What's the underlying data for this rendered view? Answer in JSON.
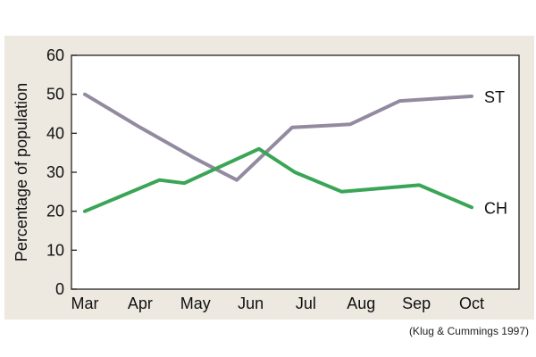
{
  "chart_data": {
    "type": "line",
    "title": "",
    "xlabel": "",
    "ylabel": "Percentage of population",
    "categories": [
      "Mar",
      "Apr",
      "May",
      "Jun",
      "Jul",
      "Aug",
      "Sep",
      "Oct"
    ],
    "ylim": [
      0,
      60
    ],
    "yticks": [
      0,
      10,
      20,
      30,
      40,
      50,
      60
    ],
    "grid": false,
    "legend": "inline-right",
    "series": [
      {
        "name": "ST",
        "color": "#938aa0",
        "points": [
          {
            "x": 0,
            "y": 50
          },
          {
            "x": 1,
            "y": 41.5
          },
          {
            "x": 2,
            "y": 33.5
          },
          {
            "x": 2.75,
            "y": 28
          },
          {
            "x": 3.75,
            "y": 41.5
          },
          {
            "x": 4.8,
            "y": 42.3
          },
          {
            "x": 5.7,
            "y": 48.3
          },
          {
            "x": 7,
            "y": 49.5
          }
        ]
      },
      {
        "name": "CH",
        "color": "#3aa556",
        "points": [
          {
            "x": 0,
            "y": 20
          },
          {
            "x": 1.35,
            "y": 28
          },
          {
            "x": 1.8,
            "y": 27.2
          },
          {
            "x": 3.15,
            "y": 36
          },
          {
            "x": 3.8,
            "y": 30
          },
          {
            "x": 4.65,
            "y": 25
          },
          {
            "x": 6.05,
            "y": 26.7
          },
          {
            "x": 7,
            "y": 21
          }
        ]
      }
    ]
  },
  "source_note": "(Klug & Cummings 1997)"
}
